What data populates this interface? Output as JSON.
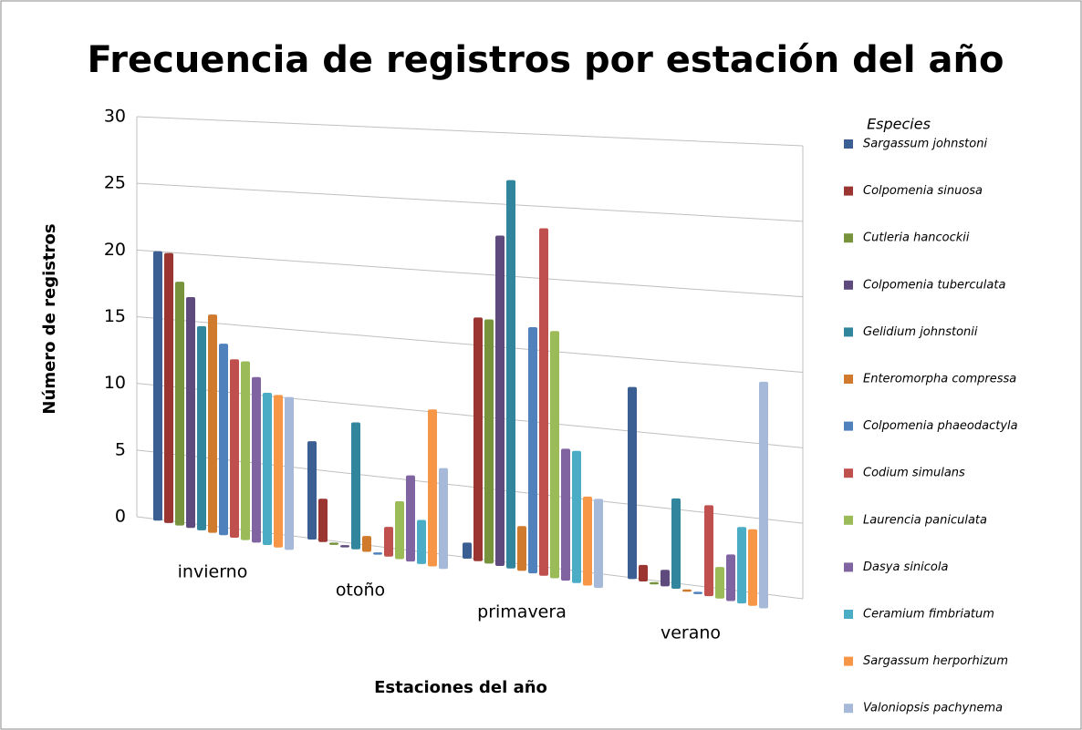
{
  "chart_data": {
    "type": "bar",
    "title": "Frecuencia de registros por estación del año",
    "x_label": "Estaciones del año",
    "y_label": "Número de registros",
    "legend_title": "Especies",
    "categories": [
      "invierno",
      "otoño",
      "primavera",
      "verano"
    ],
    "ylim": [
      0,
      30
    ],
    "yticks": [
      0,
      5,
      10,
      15,
      20,
      25,
      30
    ],
    "grid": true,
    "legend": "right",
    "series": [
      {
        "name": "Sargassum johnstoni",
        "color": "#3c5f93",
        "values": [
          20,
          7,
          1,
          13
        ]
      },
      {
        "name": "Colpomenia sinuosa",
        "color": "#9a3532",
        "values": [
          20,
          3,
          17,
          1
        ]
      },
      {
        "name": "Cutleria hancockii",
        "color": "#77933c",
        "values": [
          18,
          0,
          17,
          0
        ]
      },
      {
        "name": "Colpomenia tuberculata",
        "color": "#5f4a7e",
        "values": [
          17,
          0,
          23,
          1
        ]
      },
      {
        "name": "Gelidium johnstonii",
        "color": "#31859c",
        "values": [
          15,
          9,
          27,
          6
        ]
      },
      {
        "name": "Enteromorpha compressa",
        "color": "#d07a2d",
        "values": [
          16,
          1,
          3,
          0
        ]
      },
      {
        "name": "Colpomenia phaeodactyla",
        "color": "#4f81bd",
        "values": [
          14,
          0,
          17,
          0
        ]
      },
      {
        "name": "Codium simulans",
        "color": "#c0504d",
        "values": [
          13,
          2,
          24,
          6
        ]
      },
      {
        "name": "Laurencia paniculata",
        "color": "#9bbb59",
        "values": [
          13,
          4,
          17,
          2
        ]
      },
      {
        "name": "Dasya sinicola",
        "color": "#8064a2",
        "values": [
          12,
          6,
          9,
          3
        ]
      },
      {
        "name": "Ceramium fimbriatum",
        "color": "#4bacc6",
        "values": [
          11,
          3,
          9,
          5
        ]
      },
      {
        "name": "Sargassum herporhizum",
        "color": "#f79646",
        "values": [
          11,
          11,
          6,
          5
        ]
      },
      {
        "name": "Valoniopsis pachynema",
        "color": "#a6b9d9",
        "values": [
          11,
          7,
          6,
          15
        ]
      }
    ]
  }
}
